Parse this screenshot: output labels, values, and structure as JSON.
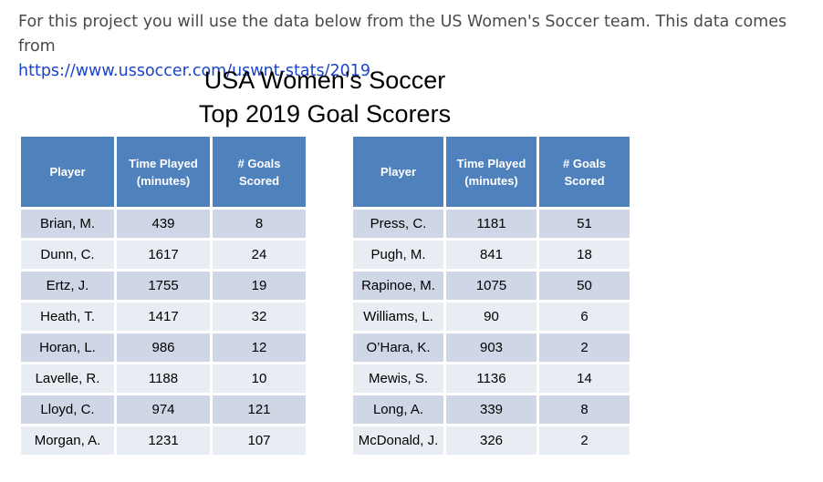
{
  "intro": {
    "text": "For this project you will use the data below from the US Women's Soccer team.  This data comes from",
    "link": "https://www.ussoccer.com/uswnt-stats/2019"
  },
  "title": {
    "line1": "USA Women’s Soccer",
    "line2": "Top 2019 Goal Scorers"
  },
  "headers": {
    "player": "Player",
    "time_line1": "Time Played",
    "time_line2": "(minutes)",
    "goals_line1": "# Goals",
    "goals_line2": "Scored"
  },
  "left_table": [
    {
      "player": "Brian, M.",
      "time": "439",
      "goals": "8"
    },
    {
      "player": "Dunn, C.",
      "time": "1617",
      "goals": "24"
    },
    {
      "player": "Ertz, J.",
      "time": "1755",
      "goals": "19"
    },
    {
      "player": "Heath, T.",
      "time": "1417",
      "goals": "32"
    },
    {
      "player": "Horan, L.",
      "time": "986",
      "goals": "12"
    },
    {
      "player": "Lavelle, R.",
      "time": "1188",
      "goals": "10"
    },
    {
      "player": "Lloyd, C.",
      "time": "974",
      "goals": "121"
    },
    {
      "player": "Morgan, A.",
      "time": "1231",
      "goals": "107"
    }
  ],
  "right_table": [
    {
      "player": "Press, C.",
      "time": "1181",
      "goals": "51"
    },
    {
      "player": "Pugh, M.",
      "time": "841",
      "goals": "18"
    },
    {
      "player": "Rapinoe, M.",
      "time": "1075",
      "goals": "50"
    },
    {
      "player": "Williams, L.",
      "time": "90",
      "goals": "6"
    },
    {
      "player": "O’Hara, K.",
      "time": "903",
      "goals": "2"
    },
    {
      "player": "Mewis, S.",
      "time": "1136",
      "goals": "14"
    },
    {
      "player": "Long, A.",
      "time": "339",
      "goals": "8"
    },
    {
      "player": "McDonald, J.",
      "time": "326",
      "goals": "2"
    }
  ],
  "colors": {
    "header_bg": "#4f81bd",
    "row_dark": "#cfd7e7",
    "row_light": "#e8edf4",
    "link": "#1a44c9"
  }
}
